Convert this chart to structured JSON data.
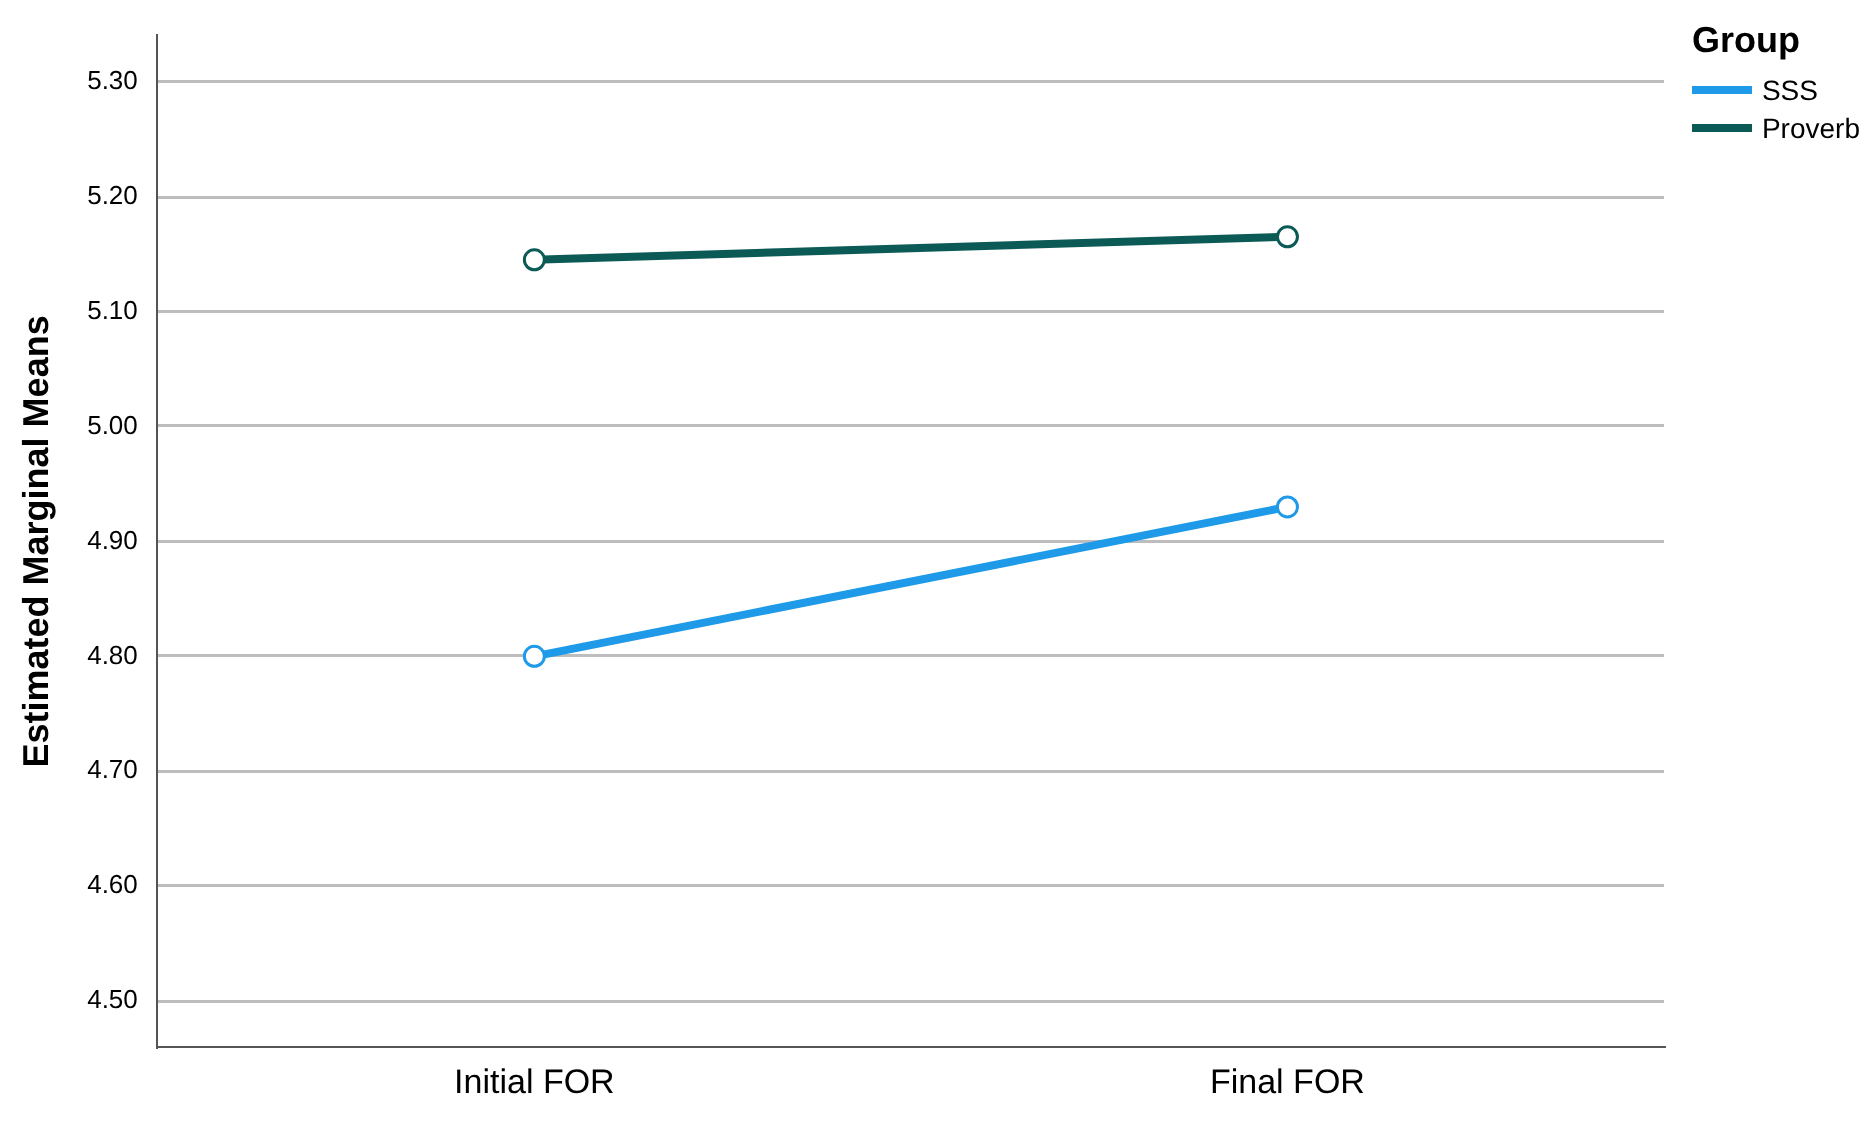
{
  "chart_data": {
    "type": "line",
    "ylabel": "Estimated Marginal Means",
    "legend_title": "Group",
    "categories": [
      "Initial FOR",
      "Final FOR"
    ],
    "series": [
      {
        "name": "SSS",
        "color": "#1f9ae8",
        "values": [
          4.8,
          4.93
        ]
      },
      {
        "name": "Proverb",
        "color": "#0b5a55",
        "values": [
          5.145,
          5.165
        ]
      }
    ],
    "ylim": [
      4.46,
      5.34
    ],
    "yticks": [
      {
        "value": 4.5,
        "label": "4.50"
      },
      {
        "value": 4.6,
        "label": "4.60"
      },
      {
        "value": 4.7,
        "label": "4.70"
      },
      {
        "value": 4.8,
        "label": "4.80"
      },
      {
        "value": 4.9,
        "label": "4.90"
      },
      {
        "value": 5.0,
        "label": "5.00"
      },
      {
        "value": 5.1,
        "label": "5.10"
      },
      {
        "value": 5.2,
        "label": "5.20"
      },
      {
        "value": 5.3,
        "label": "5.30"
      }
    ],
    "grid": "y",
    "legend": "top right",
    "marker": "circle",
    "line_style": "solid"
  }
}
